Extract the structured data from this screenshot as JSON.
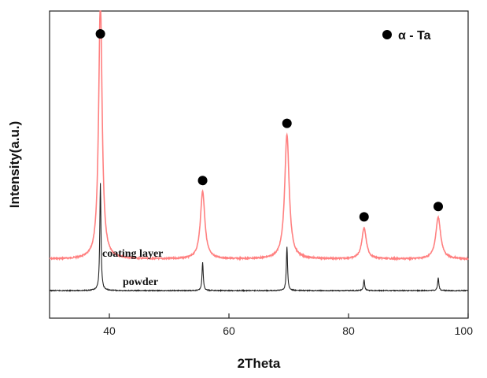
{
  "chart_data": {
    "type": "line",
    "xlabel": "2Theta",
    "ylabel": "Intensity(a.u.)",
    "xlim": [
      30,
      100
    ],
    "xticks": [
      "40",
      "60",
      "80",
      "100"
    ],
    "legend": {
      "position": "top-right",
      "marker": "filled-circle",
      "label": "α - Ta"
    },
    "series": [
      {
        "name": "coating layer",
        "color": "#ff8080",
        "baseline": 0,
        "peaks": [
          {
            "x": 38.5,
            "height": 1.0,
            "width": 0.35,
            "marked": true
          },
          {
            "x": 55.6,
            "height": 0.26,
            "width": 0.45,
            "marked": true
          },
          {
            "x": 69.7,
            "height": 0.48,
            "width": 0.45,
            "marked": true
          },
          {
            "x": 82.6,
            "height": 0.12,
            "width": 0.45,
            "marked": true
          },
          {
            "x": 95.0,
            "height": 0.16,
            "width": 0.5,
            "marked": true
          }
        ]
      },
      {
        "name": "powder",
        "color": "#222222",
        "baseline": 0,
        "peaks": [
          {
            "x": 38.5,
            "height": 0.34,
            "width": 0.12
          },
          {
            "x": 55.6,
            "height": 0.09,
            "width": 0.12
          },
          {
            "x": 69.7,
            "height": 0.14,
            "width": 0.12
          },
          {
            "x": 82.6,
            "height": 0.035,
            "width": 0.12
          },
          {
            "x": 95.0,
            "height": 0.04,
            "width": 0.12
          }
        ]
      }
    ]
  }
}
